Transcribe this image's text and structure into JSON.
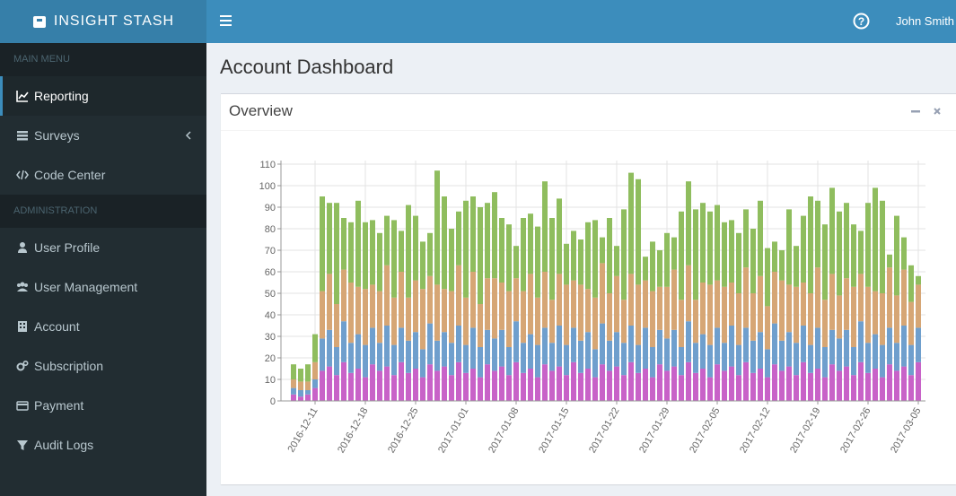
{
  "header": {
    "brand": "INSIGHT STASH",
    "user": "John Smith"
  },
  "sidebar": {
    "sections": [
      {
        "title": "MAIN MENU",
        "items": [
          "Reporting",
          "Surveys",
          "Code Center"
        ]
      },
      {
        "title": "ADMINISTRATION",
        "items": [
          "User Profile",
          "User Management",
          "Account",
          "Subscription",
          "Payment",
          "Audit Logs"
        ]
      }
    ]
  },
  "page": {
    "title": "Account Dashboard"
  },
  "box": {
    "title": "Overview"
  },
  "chart_data": {
    "type": "bar",
    "stacked": true,
    "grid": true,
    "categories": [
      null,
      null,
      null,
      "2016-12-11",
      null,
      null,
      null,
      null,
      null,
      null,
      "2016-12-18",
      null,
      null,
      null,
      null,
      null,
      null,
      "2016-12-25",
      null,
      null,
      null,
      null,
      null,
      null,
      "2017-01-01",
      null,
      null,
      null,
      null,
      null,
      null,
      "2017-01-08",
      null,
      null,
      null,
      null,
      null,
      null,
      "2017-01-15",
      null,
      null,
      null,
      null,
      null,
      null,
      "2017-01-22",
      null,
      null,
      null,
      null,
      null,
      null,
      "2017-01-29",
      null,
      null,
      null,
      null,
      null,
      null,
      "2017-02-05",
      null,
      null,
      null,
      null,
      null,
      null,
      "2017-02-12",
      null,
      null,
      null,
      null,
      null,
      null,
      "2017-02-19",
      null,
      null,
      null,
      null,
      null,
      null,
      "2017-02-26",
      null,
      null,
      null,
      null,
      null,
      null,
      "2017-03-05"
    ],
    "series": [
      {
        "color": "#c862c8",
        "values": [
          3,
          2,
          3,
          6,
          14,
          16,
          12,
          18,
          13,
          15,
          11,
          17,
          14,
          16,
          12,
          18,
          13,
          15,
          11,
          17,
          14,
          16,
          12,
          18,
          13,
          15,
          11,
          17,
          14,
          16,
          12,
          18,
          13,
          15,
          11,
          17,
          14,
          16,
          12,
          18,
          13,
          15,
          11,
          17,
          14,
          16,
          12,
          18,
          13,
          15,
          11,
          17,
          14,
          16,
          12,
          18,
          13,
          15,
          11,
          17,
          14,
          16,
          12,
          18,
          13,
          15,
          11,
          17,
          14,
          16,
          12,
          18,
          13,
          15,
          11,
          17,
          14,
          16,
          12,
          18,
          13,
          15,
          11,
          17,
          14,
          16,
          12,
          18
        ]
      },
      {
        "color": "#6f9fcd",
        "values": [
          3,
          3,
          2,
          4,
          15,
          17,
          13,
          19,
          14,
          16,
          15,
          17,
          13,
          19,
          14,
          16,
          15,
          17,
          13,
          19,
          14,
          16,
          15,
          17,
          13,
          19,
          14,
          16,
          15,
          17,
          13,
          19,
          14,
          16,
          15,
          17,
          13,
          19,
          14,
          16,
          15,
          17,
          13,
          19,
          14,
          16,
          15,
          17,
          13,
          19,
          14,
          16,
          15,
          17,
          13,
          19,
          14,
          16,
          15,
          17,
          13,
          19,
          14,
          16,
          15,
          17,
          13,
          19,
          14,
          16,
          15,
          17,
          13,
          19,
          14,
          16,
          15,
          17,
          13,
          19,
          14,
          16,
          15,
          17,
          13,
          19,
          14,
          16
        ]
      },
      {
        "color": "#d6a675",
        "values": [
          4,
          4,
          4,
          8,
          22,
          26,
          20,
          24,
          28,
          22,
          26,
          20,
          24,
          28,
          22,
          26,
          20,
          24,
          28,
          22,
          26,
          20,
          24,
          28,
          22,
          26,
          20,
          24,
          28,
          22,
          26,
          20,
          24,
          28,
          22,
          26,
          20,
          24,
          28,
          22,
          26,
          20,
          24,
          28,
          22,
          26,
          20,
          24,
          28,
          22,
          26,
          20,
          24,
          28,
          22,
          26,
          20,
          24,
          28,
          22,
          26,
          20,
          24,
          28,
          22,
          26,
          20,
          24,
          28,
          22,
          26,
          20,
          24,
          28,
          22,
          26,
          20,
          24,
          28,
          22,
          26,
          20,
          24,
          28,
          22,
          26,
          20,
          20
        ]
      },
      {
        "color": "#8fbd5e",
        "values": [
          7,
          6,
          8,
          13,
          44,
          33,
          47,
          24,
          28,
          40,
          31,
          30,
          27,
          23,
          36,
          19,
          43,
          30,
          22,
          20,
          53,
          43,
          29,
          25,
          45,
          35,
          45,
          35,
          40,
          30,
          31,
          15,
          34,
          28,
          33,
          42,
          38,
          35,
          19,
          23,
          21,
          31,
          36,
          12,
          35,
          14,
          42,
          47,
          49,
          11,
          23,
          17,
          25,
          15,
          41,
          39,
          42,
          37,
          34,
          35,
          30,
          29,
          28,
          27,
          30,
          35,
          27,
          14,
          14,
          35,
          19,
          31,
          45,
          31,
          35,
          40,
          39,
          35,
          29,
          20,
          39,
          48,
          43,
          6,
          37,
          15,
          17,
          4
        ]
      }
    ],
    "ylim": [
      0,
      110
    ],
    "yticks": [
      0,
      10,
      20,
      30,
      40,
      50,
      60,
      70,
      80,
      90,
      100,
      110
    ]
  }
}
